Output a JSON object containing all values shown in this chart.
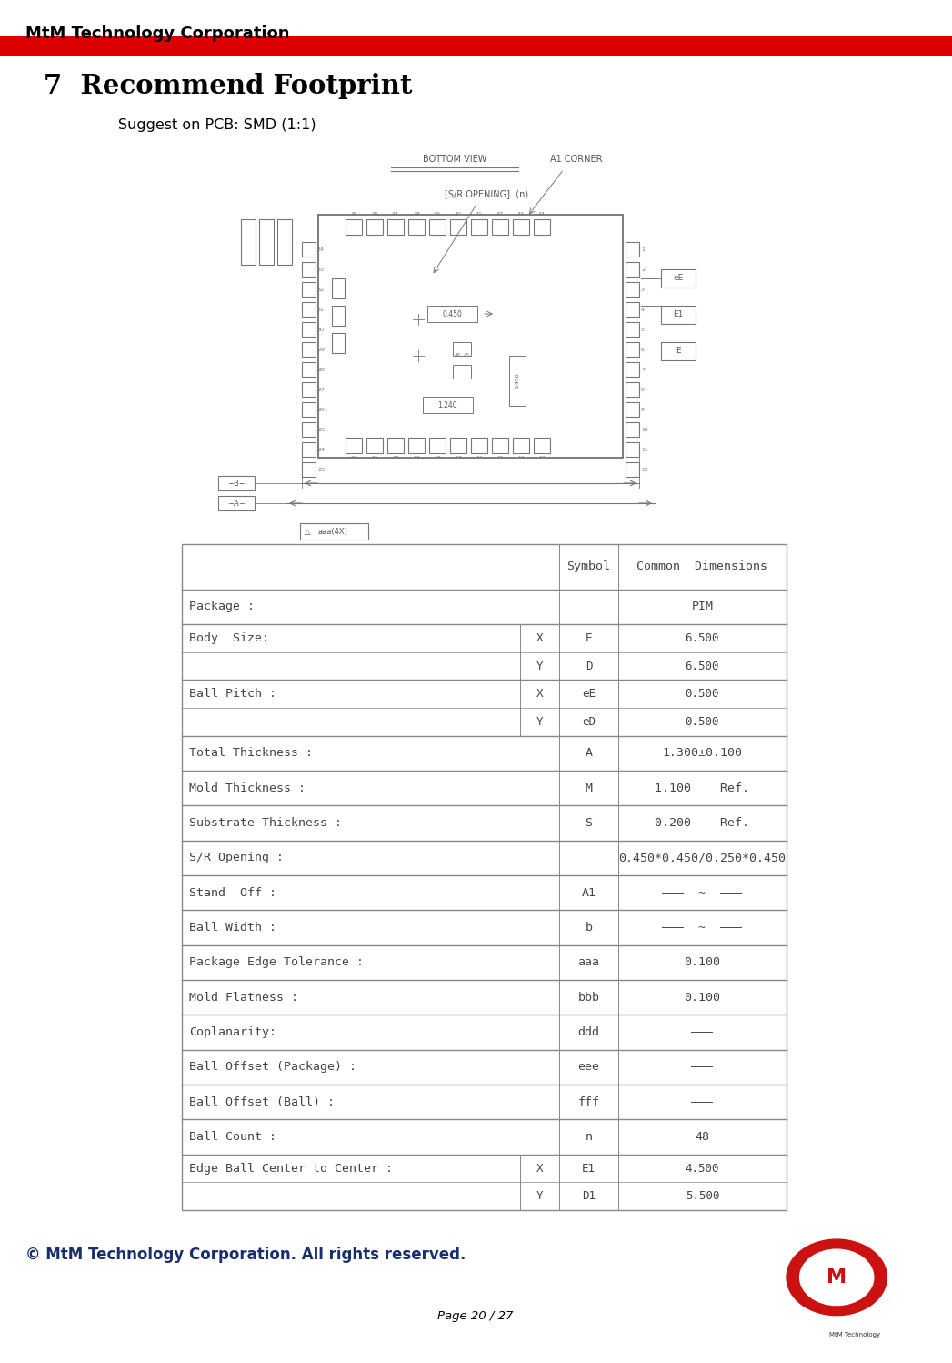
{
  "header_company": "MtM Technology Corporation",
  "red_color": "#DD0000",
  "section_title": "7  Recommend Footprint",
  "subtitle": "Suggest on PCB: SMD (1:1)",
  "footer_copyright": "© MtM Technology Corporation. All rights reserved.",
  "footer_page": "Page 20 / 27",
  "bg_color": "#ffffff",
  "text_color": "#000000",
  "table_text_color": "#444444",
  "blue_color": "#1a2e6e",
  "table_rows": [
    {
      "label": "",
      "xy": "",
      "symbol": "Symbol",
      "dim": "Common  Dimensions",
      "is_header": true,
      "sub": false
    },
    {
      "label": "Package :",
      "xy": "",
      "symbol": "",
      "dim": "PIM",
      "is_header": false,
      "sub": false
    },
    {
      "label": "Body  Size:",
      "xy": "X",
      "symbol": "E",
      "dim": "6.500",
      "is_header": false,
      "sub": true,
      "first_sub": true
    },
    {
      "label": "",
      "xy": "Y",
      "symbol": "D",
      "dim": "6.500",
      "is_header": false,
      "sub": true,
      "first_sub": false
    },
    {
      "label": "Ball Pitch :",
      "xy": "X",
      "symbol": "eE",
      "dim": "0.500",
      "is_header": false,
      "sub": true,
      "first_sub": true
    },
    {
      "label": "",
      "xy": "Y",
      "symbol": "eD",
      "dim": "0.500",
      "is_header": false,
      "sub": true,
      "first_sub": false
    },
    {
      "label": "Total Thickness :",
      "xy": "",
      "symbol": "A",
      "dim": "1.300±0.100",
      "is_header": false,
      "sub": false
    },
    {
      "label": "Mold Thickness :",
      "xy": "",
      "symbol": "M",
      "dim": "1.100    Ref.",
      "is_header": false,
      "sub": false
    },
    {
      "label": "Substrate Thickness :",
      "xy": "",
      "symbol": "S",
      "dim": "0.200    Ref.",
      "is_header": false,
      "sub": false
    },
    {
      "label": "S/R Opening :",
      "xy": "",
      "symbol": "",
      "dim": "0.450*0.450/0.250*0.450",
      "is_header": false,
      "sub": false
    },
    {
      "label": "Stand  Off :",
      "xy": "",
      "symbol": "A1",
      "dim": "———  ~  ———",
      "is_header": false,
      "sub": false
    },
    {
      "label": "Ball Width :",
      "xy": "",
      "symbol": "b",
      "dim": "———  ~  ———",
      "is_header": false,
      "sub": false
    },
    {
      "label": "Package Edge Tolerance :",
      "xy": "",
      "symbol": "aaa",
      "dim": "0.100",
      "is_header": false,
      "sub": false
    },
    {
      "label": "Mold Flatness :",
      "xy": "",
      "symbol": "bbb",
      "dim": "0.100",
      "is_header": false,
      "sub": false
    },
    {
      "label": "Coplanarity:",
      "xy": "",
      "symbol": "ddd",
      "dim": "———",
      "is_header": false,
      "sub": false
    },
    {
      "label": "Ball Offset (Package) :",
      "xy": "",
      "symbol": "eee",
      "dim": "———",
      "is_header": false,
      "sub": false
    },
    {
      "label": "Ball Offset (Ball) :",
      "xy": "",
      "symbol": "fff",
      "dim": "———",
      "is_header": false,
      "sub": false
    },
    {
      "label": "Ball Count :",
      "xy": "",
      "symbol": "n",
      "dim": "48",
      "is_header": false,
      "sub": false
    },
    {
      "label": "Edge Ball Center to Center :",
      "xy": "X",
      "symbol": "E1",
      "dim": "4.500",
      "is_header": false,
      "sub": true,
      "first_sub": true
    },
    {
      "label": "",
      "xy": "Y",
      "symbol": "D1",
      "dim": "5.500",
      "is_header": false,
      "sub": true,
      "first_sub": false
    }
  ]
}
